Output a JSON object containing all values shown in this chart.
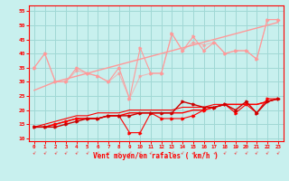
{
  "x": [
    0,
    1,
    2,
    3,
    4,
    5,
    6,
    7,
    8,
    9,
    10,
    11,
    12,
    13,
    14,
    15,
    16,
    17,
    18,
    19,
    20,
    21,
    22,
    23
  ],
  "line1_pink": [
    35,
    40,
    30,
    30,
    35,
    33,
    32,
    30,
    35,
    24,
    42,
    33,
    33,
    47,
    41,
    46,
    41,
    44,
    40,
    41,
    41,
    38,
    52,
    52
  ],
  "line2_pink": [
    35,
    40,
    30,
    30,
    34,
    33,
    32,
    30,
    33,
    24,
    32,
    33,
    33,
    47,
    41,
    44,
    43,
    44,
    40,
    41,
    41,
    38,
    52,
    52
  ],
  "line3_trend_pink": [
    27,
    28.5,
    30,
    31,
    32,
    33,
    34,
    35,
    36,
    37,
    38,
    39,
    40,
    41,
    42,
    43,
    44,
    45,
    46,
    47,
    48,
    49,
    50,
    51
  ],
  "line4_red_dip": [
    14,
    14,
    15,
    16,
    17,
    17,
    17,
    18,
    18,
    12,
    12,
    19,
    17,
    17,
    17,
    18,
    20,
    21,
    22,
    19,
    22,
    19,
    24,
    24
  ],
  "line5_red_flat": [
    14,
    14,
    15,
    16,
    17,
    17,
    17,
    18,
    18,
    19,
    19,
    19,
    19,
    19,
    19,
    20,
    20,
    21,
    22,
    22,
    22,
    22,
    23,
    24
  ],
  "line6_red_trend": [
    14,
    15,
    16,
    17,
    18,
    18,
    19,
    19,
    19,
    20,
    20,
    20,
    20,
    20,
    21,
    21,
    21,
    22,
    22,
    22,
    22,
    22,
    23,
    24
  ],
  "line7_dark_red": [
    14,
    14,
    14,
    15,
    16,
    17,
    17,
    18,
    18,
    18,
    19,
    19,
    19,
    19,
    23,
    22,
    21,
    21,
    22,
    20,
    23,
    19,
    23,
    24
  ],
  "ylabel_values": [
    10,
    15,
    20,
    25,
    30,
    35,
    40,
    45,
    50,
    55
  ],
  "ylim": [
    9,
    57
  ],
  "xlim": [
    -0.5,
    23.5
  ],
  "xlabel": "Vent moyen/en rafales ( km/h )",
  "bg_color": "#c8f0ee",
  "grid_color": "#a0d8d5",
  "pink_color": "#ff9999",
  "red_color": "#ff0000",
  "dark_red_color": "#cc0000"
}
